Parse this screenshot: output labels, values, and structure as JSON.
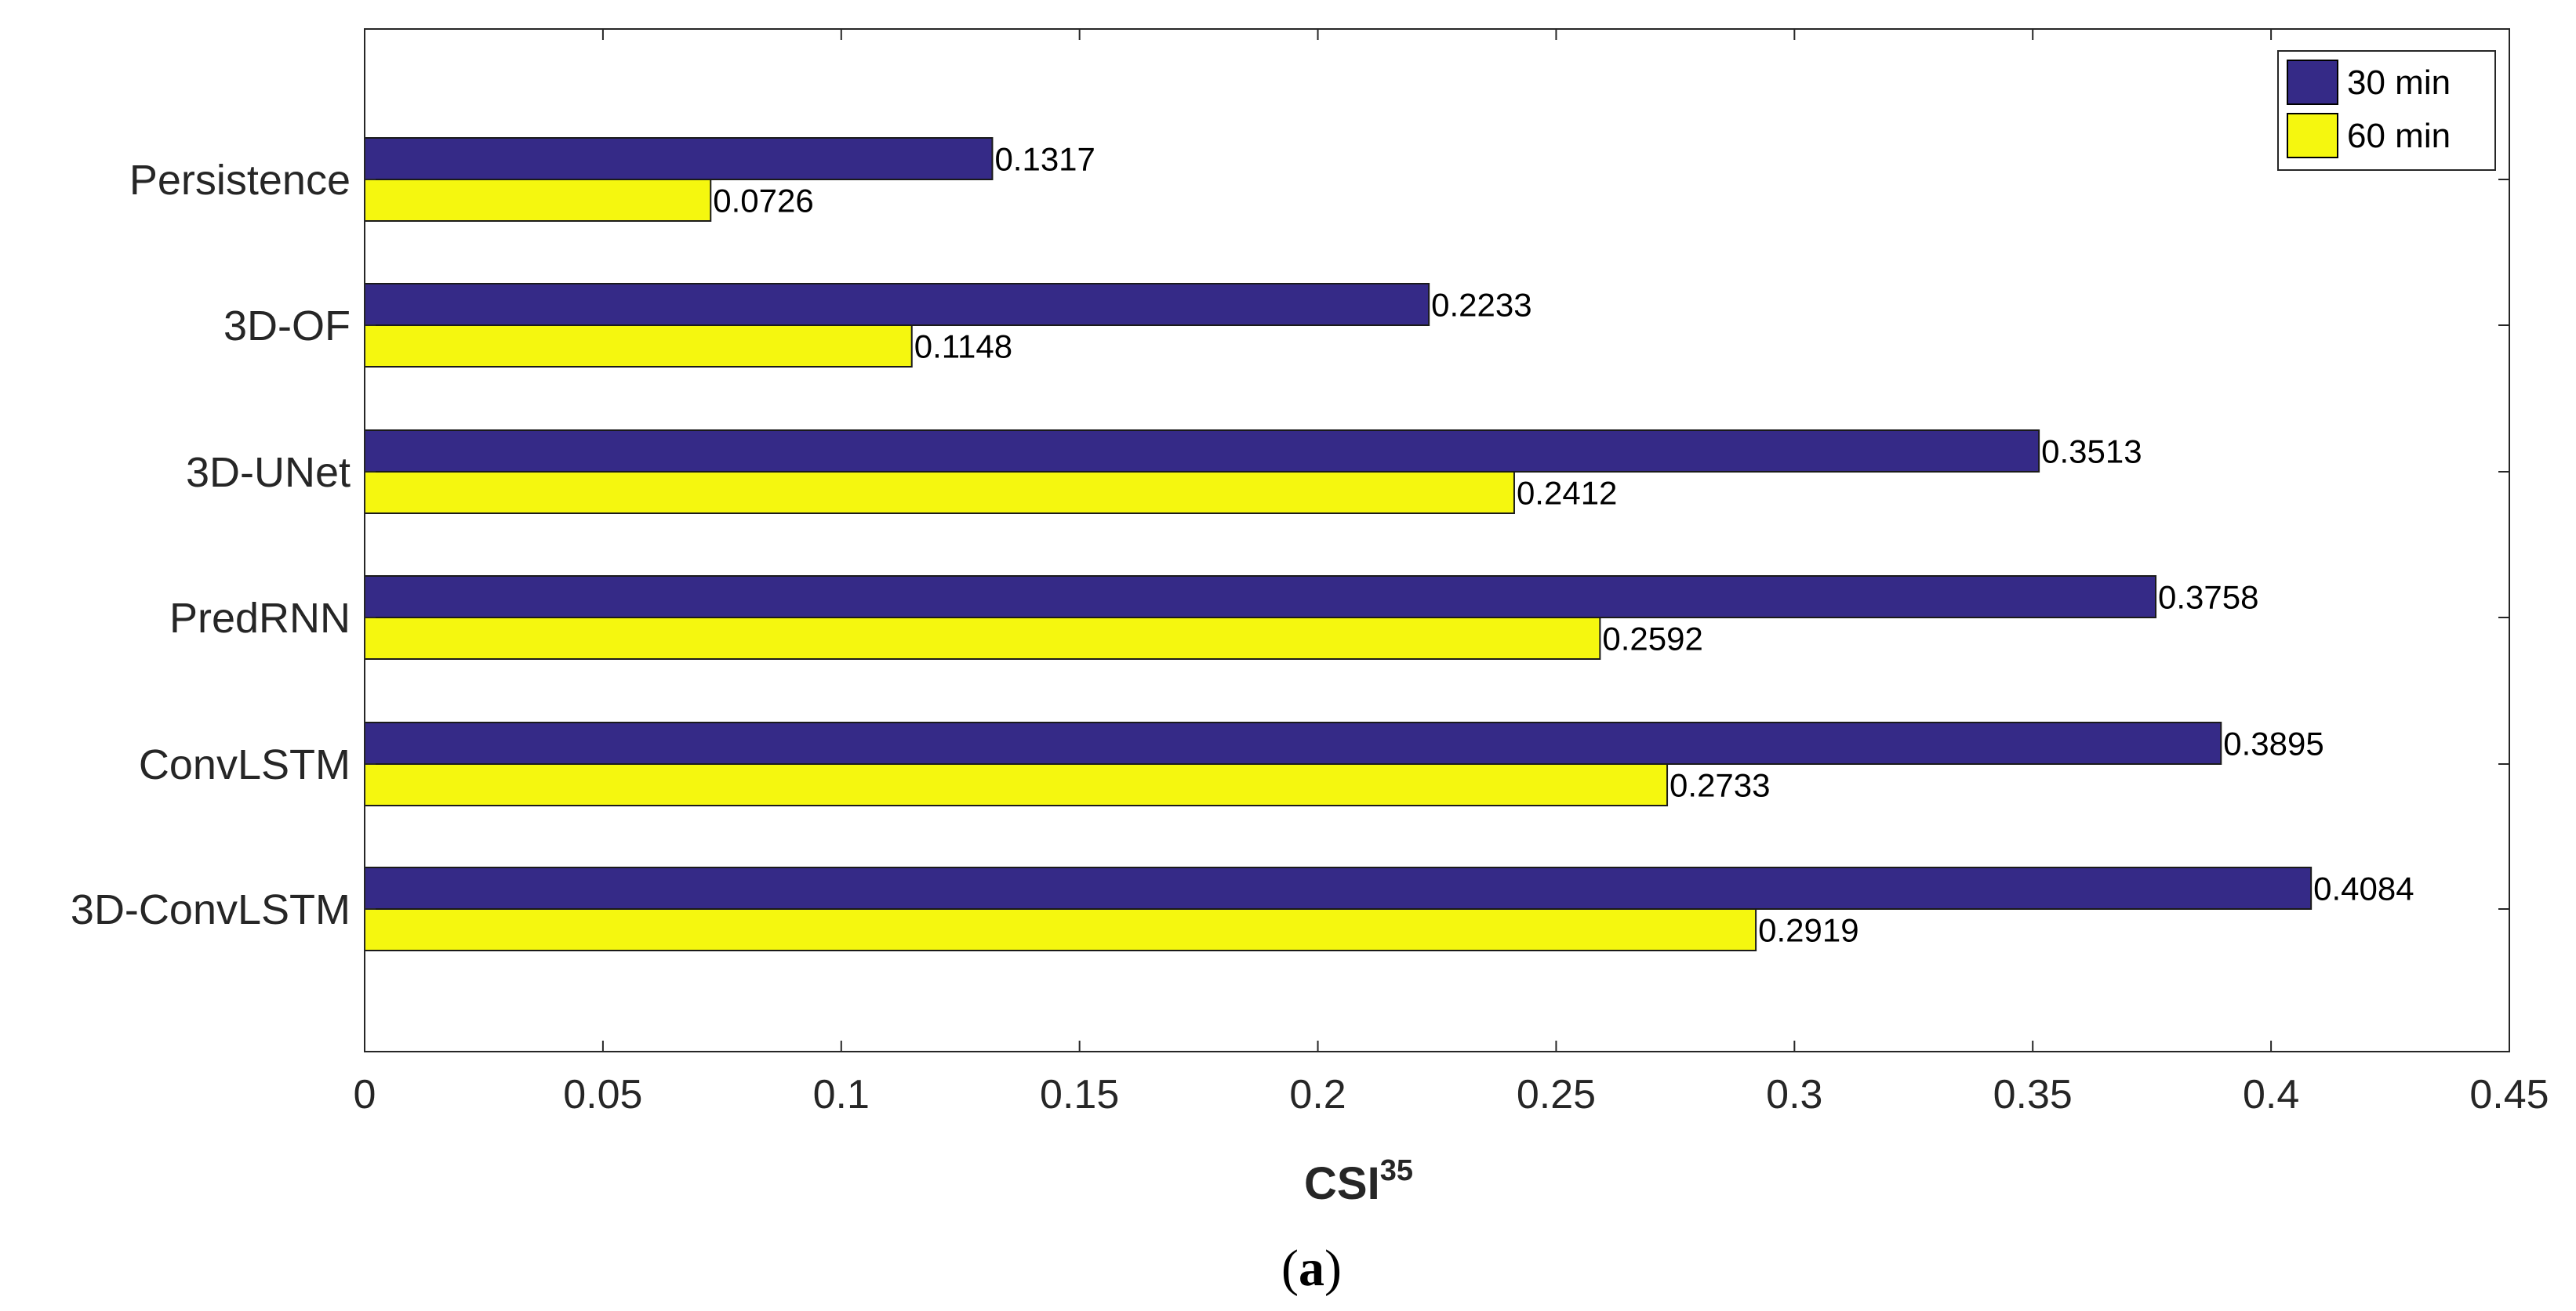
{
  "chart_data": {
    "type": "bar",
    "orientation": "horizontal",
    "categories": [
      "Persistence",
      "3D-OF",
      "3D-UNet",
      "PredRNN",
      "ConvLSTM",
      "3D-ConvLSTM"
    ],
    "series": [
      {
        "name": "30 min",
        "color": "#352a87",
        "values": [
          0.1317,
          0.2233,
          0.3513,
          0.3758,
          0.3895,
          0.4084
        ],
        "labels": [
          "0.1317",
          "0.2233",
          "0.3513",
          "0.3758",
          "0.3895",
          "0.4084"
        ]
      },
      {
        "name": "60 min",
        "color": "#f5f70f",
        "values": [
          0.0726,
          0.1148,
          0.2412,
          0.2592,
          0.2733,
          0.2919
        ],
        "labels": [
          "0.0726",
          "0.1148",
          "0.2412",
          "0.2592",
          "0.2733",
          "0.2919"
        ]
      }
    ],
    "xlim": [
      0,
      0.45
    ],
    "xticks": [
      0,
      0.05,
      0.1,
      0.15,
      0.2,
      0.25,
      0.3,
      0.35,
      0.4,
      0.45
    ],
    "xtick_labels": [
      "0",
      "0.05",
      "0.1",
      "0.15",
      "0.2",
      "0.25",
      "0.3",
      "0.35",
      "0.4",
      "0.45"
    ],
    "xlabel": "CSI",
    "xlabel_superscript": "35",
    "legend_position": "top-right",
    "grid": false
  },
  "caption": {
    "open": "(",
    "letter": "a",
    "close": ")"
  }
}
